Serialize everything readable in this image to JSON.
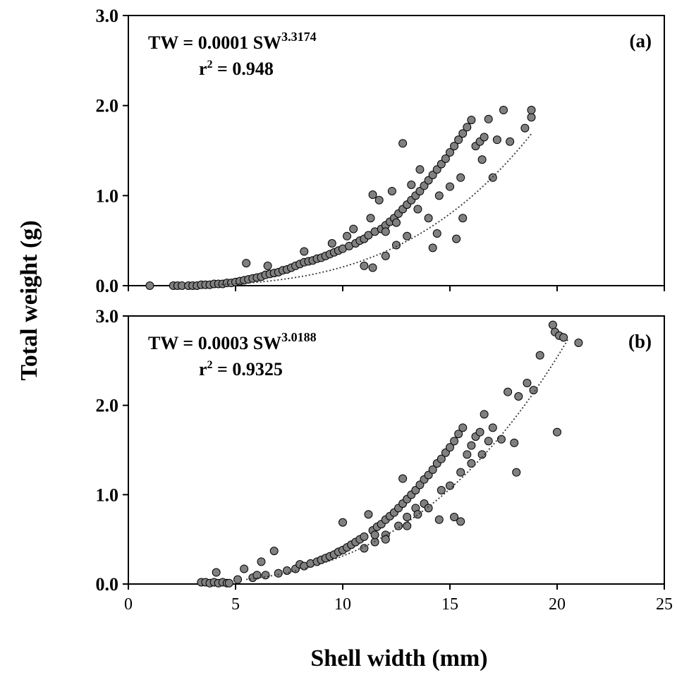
{
  "figure": {
    "ylabel": "Total weight (g)",
    "xlabel": "Shell width (mm)"
  },
  "chart_data": [
    {
      "type": "scatter",
      "panel_label": "(a)",
      "equation": {
        "prefix": "TW = 0.0001 SW",
        "exponent": "3.3174"
      },
      "r2": {
        "prefix": "r",
        "sup": "2",
        "value": " = 0.948"
      },
      "xlim": [
        0,
        25
      ],
      "ylim": [
        0,
        3
      ],
      "xticks": [],
      "yticks": [
        "0.0",
        "1.0",
        "2.0",
        "3.0"
      ],
      "marker_color": "#808080",
      "trend": {
        "a": 0.0001,
        "b": 3.3174,
        "x_start": 4.0,
        "x_end": 18.8
      },
      "points": [
        [
          1.0,
          0.0
        ],
        [
          2.1,
          0.0
        ],
        [
          2.3,
          0.0
        ],
        [
          2.5,
          0.0
        ],
        [
          2.8,
          0.0
        ],
        [
          3.0,
          0.0
        ],
        [
          3.2,
          0.0
        ],
        [
          3.4,
          0.01
        ],
        [
          3.6,
          0.01
        ],
        [
          3.8,
          0.01
        ],
        [
          4.0,
          0.02
        ],
        [
          4.2,
          0.02
        ],
        [
          4.4,
          0.02
        ],
        [
          4.6,
          0.03
        ],
        [
          4.8,
          0.03
        ],
        [
          5.0,
          0.04
        ],
        [
          5.2,
          0.05
        ],
        [
          5.4,
          0.06
        ],
        [
          5.6,
          0.07
        ],
        [
          5.5,
          0.25
        ],
        [
          5.8,
          0.08
        ],
        [
          6.0,
          0.09
        ],
        [
          6.2,
          0.1
        ],
        [
          6.4,
          0.12
        ],
        [
          6.6,
          0.13
        ],
        [
          6.5,
          0.22
        ],
        [
          6.8,
          0.14
        ],
        [
          7.0,
          0.15
        ],
        [
          7.2,
          0.17
        ],
        [
          7.4,
          0.18
        ],
        [
          7.6,
          0.2
        ],
        [
          7.8,
          0.22
        ],
        [
          8.0,
          0.24
        ],
        [
          8.2,
          0.26
        ],
        [
          8.4,
          0.27
        ],
        [
          8.2,
          0.38
        ],
        [
          8.6,
          0.28
        ],
        [
          8.8,
          0.3
        ],
        [
          9.0,
          0.31
        ],
        [
          9.2,
          0.33
        ],
        [
          9.4,
          0.35
        ],
        [
          9.5,
          0.47
        ],
        [
          9.6,
          0.37
        ],
        [
          9.8,
          0.39
        ],
        [
          10.0,
          0.41
        ],
        [
          10.2,
          0.55
        ],
        [
          10.3,
          0.44
        ],
        [
          10.5,
          0.63
        ],
        [
          10.6,
          0.47
        ],
        [
          10.8,
          0.5
        ],
        [
          11.0,
          0.52
        ],
        [
          11.0,
          0.22
        ],
        [
          11.2,
          0.56
        ],
        [
          11.3,
          0.75
        ],
        [
          11.4,
          1.01
        ],
        [
          11.4,
          0.2
        ],
        [
          11.5,
          0.6
        ],
        [
          11.7,
          0.95
        ],
        [
          11.8,
          0.63
        ],
        [
          12.0,
          0.67
        ],
        [
          12.0,
          0.33
        ],
        [
          12.2,
          0.71
        ],
        [
          12.3,
          1.05
        ],
        [
          12.4,
          0.75
        ],
        [
          12.5,
          0.45
        ],
        [
          12.6,
          0.8
        ],
        [
          12.8,
          1.58
        ],
        [
          12.8,
          0.85
        ],
        [
          13.0,
          0.9
        ],
        [
          13.0,
          0.55
        ],
        [
          13.2,
          0.95
        ],
        [
          13.2,
          1.12
        ],
        [
          13.4,
          1.0
        ],
        [
          13.6,
          1.05
        ],
        [
          13.6,
          1.29
        ],
        [
          13.8,
          1.11
        ],
        [
          14.0,
          1.17
        ],
        [
          14.0,
          0.75
        ],
        [
          14.2,
          1.23
        ],
        [
          14.2,
          0.42
        ],
        [
          14.4,
          1.29
        ],
        [
          14.4,
          0.58
        ],
        [
          14.6,
          1.35
        ],
        [
          14.8,
          1.41
        ],
        [
          15.0,
          1.48
        ],
        [
          15.0,
          1.1
        ],
        [
          15.2,
          1.55
        ],
        [
          15.3,
          0.52
        ],
        [
          15.4,
          1.62
        ],
        [
          15.6,
          1.69
        ],
        [
          15.6,
          0.75
        ],
        [
          15.8,
          1.76
        ],
        [
          16.0,
          1.84
        ],
        [
          16.2,
          1.55
        ],
        [
          16.4,
          1.6
        ],
        [
          16.6,
          1.65
        ],
        [
          16.8,
          1.85
        ],
        [
          17.0,
          1.2
        ],
        [
          17.2,
          1.62
        ],
        [
          17.5,
          1.95
        ],
        [
          17.8,
          1.6
        ],
        [
          18.5,
          1.75
        ],
        [
          18.8,
          1.87
        ],
        [
          18.8,
          1.95
        ],
        [
          12.0,
          0.6
        ],
        [
          12.5,
          0.7
        ],
        [
          13.5,
          0.85
        ],
        [
          14.5,
          1.0
        ],
        [
          15.5,
          1.2
        ],
        [
          16.5,
          1.4
        ]
      ]
    },
    {
      "type": "scatter",
      "panel_label": "(b)",
      "equation": {
        "prefix": "TW = 0.0003 SW",
        "exponent": "3.0188"
      },
      "r2": {
        "prefix": "r",
        "sup": "2",
        "value": " = 0.9325"
      },
      "xlim": [
        0,
        25
      ],
      "ylim": [
        0,
        3
      ],
      "xticks": [
        "0",
        "5",
        "10",
        "15",
        "20",
        "25"
      ],
      "yticks": [
        "0.0",
        "1.0",
        "2.0",
        "3.0"
      ],
      "marker_color": "#808080",
      "trend": {
        "a": 0.0003,
        "b": 3.0188,
        "x_start": 5.5,
        "x_end": 20.5
      },
      "points": [
        [
          3.4,
          0.02
        ],
        [
          3.6,
          0.02
        ],
        [
          3.8,
          0.01
        ],
        [
          4.0,
          0.02
        ],
        [
          4.1,
          0.13
        ],
        [
          4.2,
          0.01
        ],
        [
          4.4,
          0.02
        ],
        [
          4.6,
          0.01
        ],
        [
          4.7,
          0.01
        ],
        [
          5.1,
          0.05
        ],
        [
          5.4,
          0.17
        ],
        [
          5.8,
          0.07
        ],
        [
          6.0,
          0.1
        ],
        [
          6.2,
          0.25
        ],
        [
          6.4,
          0.1
        ],
        [
          6.8,
          0.37
        ],
        [
          7.0,
          0.12
        ],
        [
          7.4,
          0.15
        ],
        [
          7.8,
          0.17
        ],
        [
          8.0,
          0.22
        ],
        [
          8.2,
          0.2
        ],
        [
          8.5,
          0.23
        ],
        [
          8.8,
          0.25
        ],
        [
          9.0,
          0.27
        ],
        [
          9.2,
          0.29
        ],
        [
          9.4,
          0.31
        ],
        [
          9.6,
          0.33
        ],
        [
          9.8,
          0.36
        ],
        [
          10.0,
          0.69
        ],
        [
          10.0,
          0.38
        ],
        [
          10.2,
          0.41
        ],
        [
          10.4,
          0.44
        ],
        [
          10.6,
          0.47
        ],
        [
          10.8,
          0.5
        ],
        [
          11.0,
          0.53
        ],
        [
          11.2,
          0.78
        ],
        [
          11.4,
          0.6
        ],
        [
          11.5,
          0.47
        ],
        [
          11.6,
          0.64
        ],
        [
          11.8,
          0.67
        ],
        [
          12.0,
          0.72
        ],
        [
          12.0,
          0.55
        ],
        [
          12.2,
          0.76
        ],
        [
          12.4,
          0.8
        ],
        [
          12.6,
          0.85
        ],
        [
          12.6,
          0.65
        ],
        [
          12.8,
          1.18
        ],
        [
          12.8,
          0.9
        ],
        [
          13.0,
          0.95
        ],
        [
          13.0,
          0.75
        ],
        [
          13.2,
          1.0
        ],
        [
          13.4,
          1.05
        ],
        [
          13.4,
          0.85
        ],
        [
          13.6,
          1.11
        ],
        [
          13.8,
          1.17
        ],
        [
          13.8,
          0.9
        ],
        [
          14.0,
          1.22
        ],
        [
          14.2,
          1.28
        ],
        [
          14.4,
          1.35
        ],
        [
          14.6,
          1.4
        ],
        [
          14.6,
          1.05
        ],
        [
          14.8,
          1.47
        ],
        [
          15.0,
          1.53
        ],
        [
          15.2,
          1.6
        ],
        [
          15.2,
          0.75
        ],
        [
          15.4,
          1.68
        ],
        [
          15.5,
          0.7
        ],
        [
          15.6,
          1.75
        ],
        [
          15.8,
          1.45
        ],
        [
          16.0,
          1.55
        ],
        [
          16.2,
          1.65
        ],
        [
          16.4,
          1.7
        ],
        [
          16.6,
          1.9
        ],
        [
          16.8,
          1.6
        ],
        [
          17.0,
          1.75
        ],
        [
          17.4,
          1.62
        ],
        [
          17.7,
          2.15
        ],
        [
          18.0,
          1.58
        ],
        [
          18.1,
          1.25
        ],
        [
          18.2,
          2.1
        ],
        [
          18.6,
          2.25
        ],
        [
          18.9,
          2.17
        ],
        [
          19.2,
          2.56
        ],
        [
          19.8,
          2.9
        ],
        [
          19.9,
          2.82
        ],
        [
          20.0,
          1.7
        ],
        [
          20.1,
          2.78
        ],
        [
          20.3,
          2.76
        ],
        [
          21.0,
          2.7
        ],
        [
          11.0,
          0.4
        ],
        [
          12.0,
          0.5
        ],
        [
          13.0,
          0.65
        ],
        [
          14.0,
          0.85
        ],
        [
          15.0,
          1.1
        ],
        [
          16.0,
          1.35
        ],
        [
          14.5,
          0.72
        ],
        [
          16.5,
          1.45
        ],
        [
          11.5,
          0.55
        ],
        [
          13.5,
          0.78
        ],
        [
          15.5,
          1.25
        ]
      ]
    }
  ]
}
